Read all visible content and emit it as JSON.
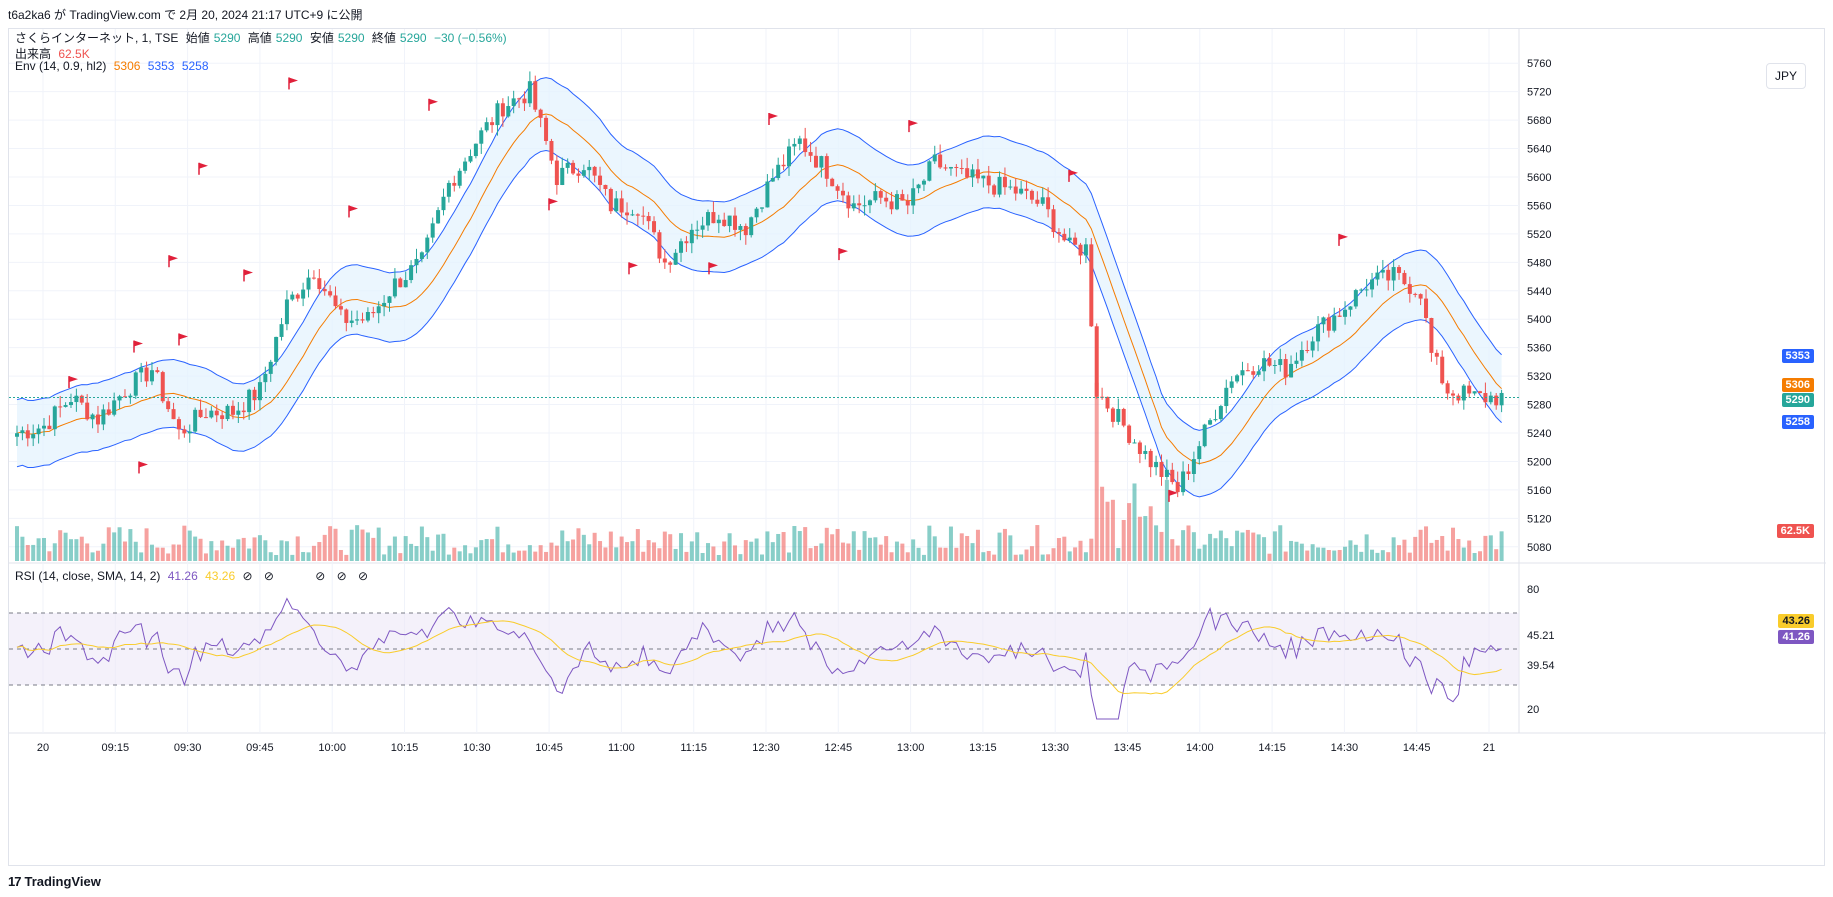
{
  "header": {
    "published_line": "t6a2ka6 が TradingView.com で 2月 20, 2024 21:17 UTC+9 に公開"
  },
  "legend": {
    "symbol": "さくらインターネット, 1, TSE",
    "open_label": "始値",
    "open_value": "5290",
    "high_label": "高値",
    "high_value": "5290",
    "low_label": "安値",
    "low_value": "5290",
    "close_label": "終値",
    "close_value": "5290",
    "change": "−30 (−0.56%)",
    "volume_label": "出来高",
    "volume_value": "62.5K",
    "env_label": "Env (14, 0.9, hl2)",
    "env_basis": "5306",
    "env_upper": "5353",
    "env_lower": "5258",
    "rsi_label": "RSI (14, close, SMA, 14, 2)",
    "rsi_value": "41.26",
    "rsi_ma_value": "43.26",
    "rsi_icons": "⊘ ⊘",
    "rsi_icons2": "⊘ ⊘ ⊘"
  },
  "currency_button": "JPY",
  "price_tags": {
    "upper": "5353",
    "basis": "5306",
    "last": "5290",
    "lower": "5258",
    "volume": "62.5K",
    "rsi_bar1": "45.21",
    "rsi_ma": "43.26",
    "rsi_val": "41.26",
    "rsi_bar2": "39.54"
  },
  "brand": "TradingView",
  "colors": {
    "up": "#26a69a",
    "down": "#ef5350",
    "env_upper": "#2962ff",
    "env_basis": "#f57c00",
    "env_fill": "#e3f2fd",
    "rsi_line": "#7e57c2",
    "rsi_ma": "#f9cc2b",
    "rsi_band": "#ede7f6",
    "flag": "#e0203a"
  },
  "chart_data": {
    "type": "candlestick",
    "title": "さくらインターネット, 1, TSE",
    "y_axis": {
      "min": 5060,
      "max": 5780,
      "ticks": [
        5080,
        5120,
        5160,
        5200,
        5240,
        5280,
        5320,
        5360,
        5400,
        5440,
        5480,
        5520,
        5560,
        5600,
        5640,
        5680,
        5720,
        5760
      ]
    },
    "x_labels": [
      "20",
      "09:15",
      "09:30",
      "09:45",
      "10:00",
      "10:15",
      "10:30",
      "10:45",
      "11:00",
      "11:15",
      "12:30",
      "12:45",
      "13:00",
      "13:15",
      "13:30",
      "13:45",
      "14:00",
      "14:15",
      "14:30",
      "14:45",
      "21"
    ],
    "close_path_anchors": [
      [
        0,
        5240
      ],
      [
        5,
        5250
      ],
      [
        10,
        5290
      ],
      [
        15,
        5260
      ],
      [
        20,
        5300
      ],
      [
        25,
        5330
      ],
      [
        30,
        5240
      ],
      [
        35,
        5270
      ],
      [
        40,
        5270
      ],
      [
        45,
        5300
      ],
      [
        50,
        5420
      ],
      [
        55,
        5470
      ],
      [
        60,
        5400
      ],
      [
        65,
        5400
      ],
      [
        70,
        5450
      ],
      [
        75,
        5480
      ],
      [
        80,
        5590
      ],
      [
        85,
        5650
      ],
      [
        90,
        5700
      ],
      [
        95,
        5720
      ],
      [
        100,
        5600
      ],
      [
        105,
        5620
      ],
      [
        110,
        5560
      ],
      [
        115,
        5560
      ],
      [
        120,
        5480
      ],
      [
        125,
        5530
      ],
      [
        130,
        5550
      ],
      [
        135,
        5530
      ],
      [
        140,
        5600
      ],
      [
        145,
        5650
      ],
      [
        150,
        5610
      ],
      [
        155,
        5560
      ],
      [
        160,
        5570
      ],
      [
        165,
        5560
      ],
      [
        170,
        5620
      ],
      [
        175,
        5600
      ],
      [
        180,
        5590
      ],
      [
        185,
        5580
      ],
      [
        190,
        5560
      ],
      [
        195,
        5500
      ],
      [
        198,
        5500
      ],
      [
        200,
        5300
      ],
      [
        205,
        5250
      ],
      [
        210,
        5200
      ],
      [
        215,
        5160
      ],
      [
        220,
        5240
      ],
      [
        225,
        5320
      ],
      [
        230,
        5340
      ],
      [
        235,
        5330
      ],
      [
        240,
        5380
      ],
      [
        245,
        5410
      ],
      [
        250,
        5450
      ],
      [
        255,
        5460
      ],
      [
        260,
        5440
      ],
      [
        262,
        5350
      ],
      [
        265,
        5300
      ],
      [
        270,
        5290
      ],
      [
        275,
        5290
      ]
    ],
    "volume_axis_label": "62.5K",
    "rsi": {
      "levels": [
        80,
        45.21,
        39.54,
        20
      ],
      "ticks": [
        80,
        45.21,
        39.54,
        20
      ],
      "value": 41.26,
      "ma": 43.26
    }
  }
}
